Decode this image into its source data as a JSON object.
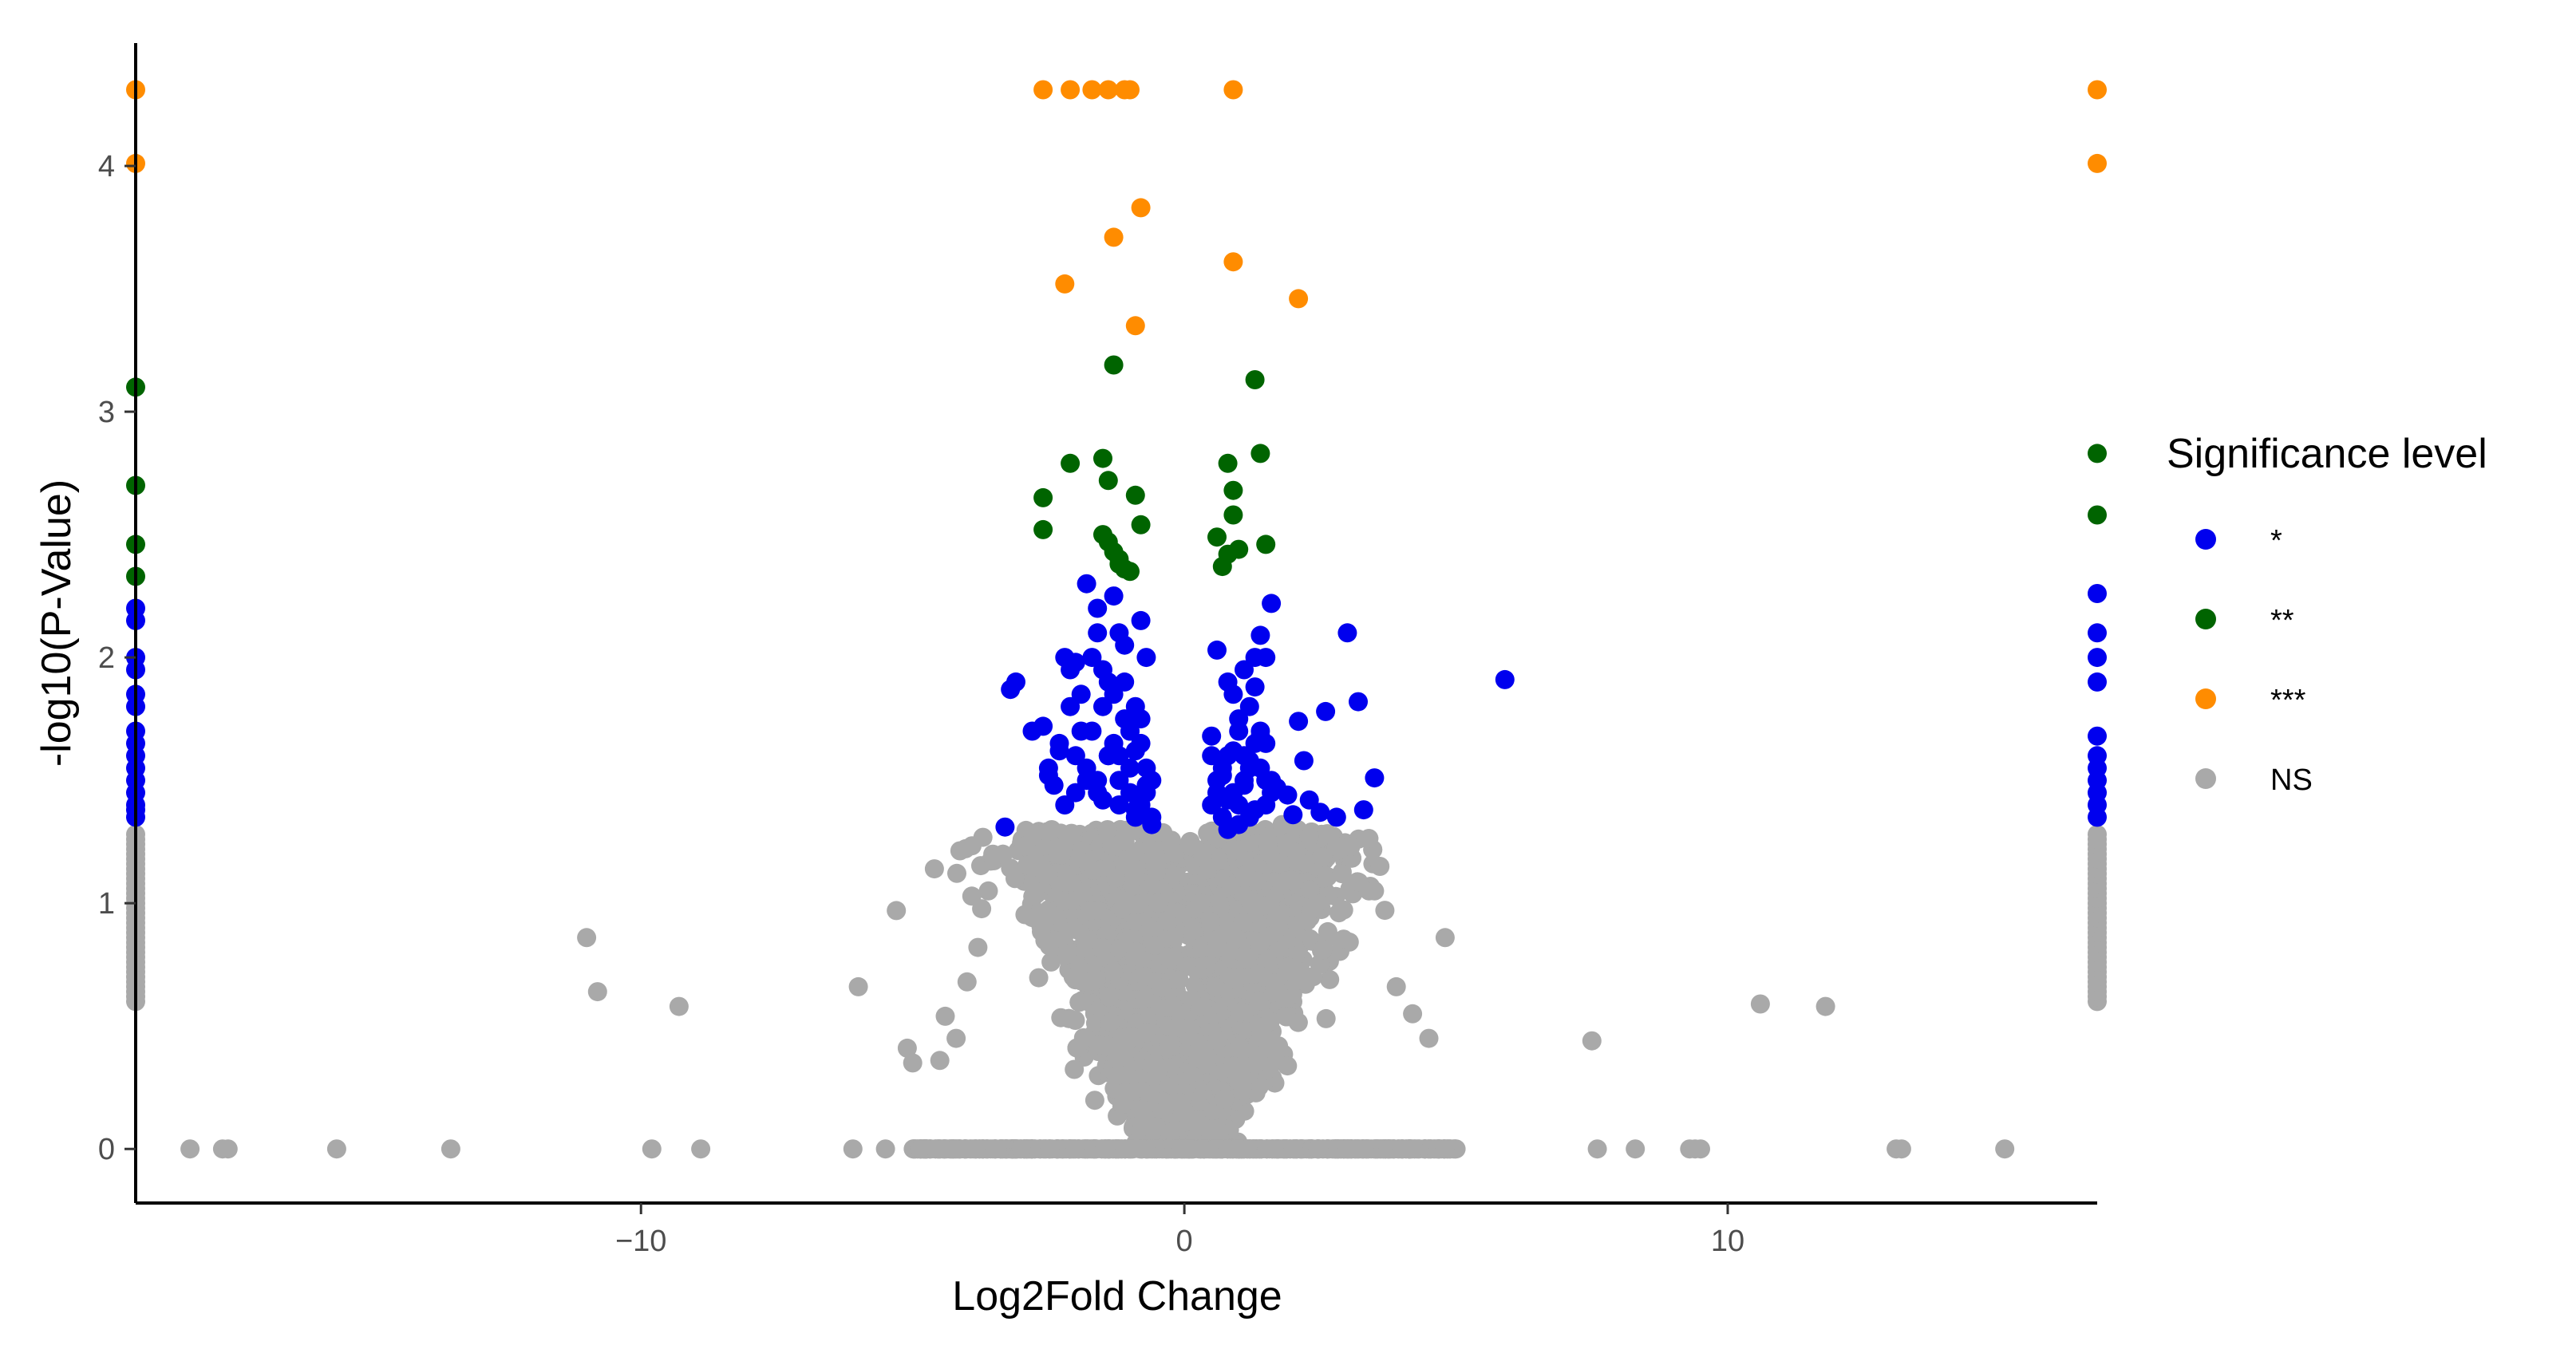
{
  "chart_data": {
    "type": "scatter",
    "title": "",
    "xlabel": "Log2Fold Change",
    "ylabel": "-log10(P-Value)",
    "xlim": [
      -19.3,
      16.8
    ],
    "ylim": [
      -0.22,
      4.5
    ],
    "xticks": [
      -10,
      0,
      10
    ],
    "xtick_labels": [
      "−10",
      "0",
      "10"
    ],
    "yticks": [
      0,
      1,
      2,
      3,
      4
    ],
    "ytick_labels": [
      "0",
      "1",
      "2",
      "3",
      "4"
    ],
    "grid": false,
    "legend": {
      "title": "Significance level",
      "placement": "right",
      "entries": [
        {
          "label": "*",
          "color": "#0000ee"
        },
        {
          "label": "**",
          "color": "#006400"
        },
        {
          "label": "***",
          "color": "#ff8c00"
        },
        {
          "label": "NS",
          "color": "#a9a9a9"
        }
      ]
    },
    "series": [
      {
        "name": "*",
        "color": "#0000ee",
        "x": [
          -19.3,
          -19.3,
          -19.3,
          -19.3,
          -19.3,
          -19.3,
          -19.3,
          -19.3,
          -19.3,
          -19.3,
          -19.3,
          -19.3,
          -19.3,
          -19.3,
          -19.3,
          -3.2,
          -3.1,
          -2.8,
          -2.6,
          -2.5,
          -2.4,
          -2.3,
          -2.2,
          -2.1,
          -2.0,
          -1.9,
          -1.8,
          -1.7,
          -1.6,
          -1.5,
          -1.4,
          -1.3,
          -1.2,
          -1.1,
          -1.0,
          -0.9,
          -0.8,
          -0.7,
          -0.6,
          -2.2,
          -2.0,
          -1.8,
          -1.6,
          -1.4,
          -1.2,
          -1.0,
          -0.8,
          -2.5,
          -1.7,
          -1.3,
          -0.9,
          -0.6,
          -2.1,
          -1.5,
          -1.1,
          -0.7,
          -1.9,
          -1.4,
          -1.0,
          -0.8,
          -1.6,
          -1.2,
          -0.9,
          -1.3,
          -1.0,
          -0.7,
          -1.1,
          -0.8,
          -2.3,
          -1.8,
          -1.5,
          -0.6,
          -3.3,
          -2.0,
          -1.6,
          -1.2,
          -0.9,
          -0.7,
          0.5,
          0.6,
          0.7,
          0.8,
          0.9,
          1.0,
          1.1,
          1.2,
          1.3,
          1.4,
          1.5,
          1.6,
          0.6,
          0.8,
          1.0,
          1.2,
          1.4,
          0.7,
          0.9,
          1.1,
          1.3,
          1.5,
          0.5,
          0.8,
          1.0,
          1.2,
          1.4,
          1.6,
          0.6,
          0.9,
          1.1,
          1.3,
          1.5,
          0.7,
          1.0,
          1.2,
          0.5,
          1.4,
          1.6,
          1.1,
          0.8,
          2.2,
          2.3,
          2.5,
          2.8,
          3.2,
          3.3,
          3.5,
          1.9,
          2.0,
          1.7,
          2.6,
          3.0,
          2.1,
          1.5,
          1.3,
          5.9,
          16.8,
          16.8,
          16.8,
          16.8,
          16.8,
          16.8,
          16.8,
          16.8,
          16.8,
          16.8,
          16.8
        ],
        "y": [
          2.2,
          2.15,
          2.0,
          1.95,
          1.85,
          1.8,
          1.7,
          1.65,
          1.6,
          1.55,
          1.5,
          1.45,
          1.4,
          1.38,
          1.35,
          1.87,
          1.9,
          1.7,
          1.72,
          1.55,
          1.48,
          1.65,
          2.0,
          1.95,
          1.6,
          1.85,
          2.3,
          2.0,
          2.2,
          1.8,
          1.9,
          2.25,
          2.1,
          1.75,
          1.7,
          1.8,
          1.65,
          1.55,
          1.5,
          1.4,
          1.45,
          1.55,
          1.5,
          1.6,
          1.4,
          1.45,
          1.4,
          1.52,
          1.7,
          1.65,
          1.62,
          1.35,
          1.8,
          1.95,
          1.9,
          2.0,
          1.7,
          1.6,
          1.55,
          1.75,
          1.45,
          1.5,
          1.38,
          1.85,
          1.7,
          1.48,
          2.05,
          2.15,
          1.62,
          1.5,
          1.42,
          1.32,
          1.31,
          1.98,
          2.1,
          1.6,
          1.35,
          1.45,
          1.4,
          1.5,
          1.55,
          1.6,
          1.45,
          1.7,
          1.5,
          1.35,
          1.65,
          1.55,
          1.4,
          1.45,
          2.03,
          1.9,
          1.75,
          1.8,
          1.7,
          1.35,
          1.62,
          1.48,
          1.38,
          1.5,
          1.6,
          1.42,
          1.32,
          1.58,
          1.68,
          1.5,
          1.45,
          1.85,
          1.95,
          2.0,
          1.65,
          1.52,
          1.4,
          1.55,
          1.68,
          2.09,
          2.22,
          1.6,
          1.3,
          1.58,
          1.42,
          1.37,
          1.35,
          1.82,
          1.38,
          1.51,
          1.44,
          1.36,
          1.47,
          1.78,
          2.1,
          1.74,
          2.0,
          1.88,
          1.91,
          2.26,
          2.1,
          2.0,
          1.9,
          1.68,
          1.6,
          1.55,
          1.5,
          1.45,
          1.4,
          1.35
        ]
      },
      {
        "name": "**",
        "color": "#006400",
        "x": [
          -19.3,
          -19.3,
          -19.3,
          -19.3,
          -2.6,
          -2.6,
          -2.1,
          -1.5,
          -1.4,
          -1.3,
          -1.5,
          -1.4,
          -1.3,
          -1.2,
          -1.1,
          -0.9,
          -0.8,
          -1.0,
          -1.2,
          0.6,
          0.8,
          0.9,
          0.9,
          1.0,
          1.3,
          1.4,
          1.5,
          0.7,
          0.8,
          16.8,
          16.8
        ],
        "y": [
          3.1,
          2.7,
          2.46,
          2.33,
          2.65,
          2.52,
          2.79,
          2.81,
          2.72,
          3.19,
          2.5,
          2.47,
          2.43,
          2.4,
          2.36,
          2.66,
          2.54,
          2.35,
          2.38,
          2.49,
          2.79,
          2.68,
          2.58,
          2.44,
          3.13,
          2.83,
          2.46,
          2.37,
          2.42,
          2.83,
          2.58
        ]
      },
      {
        "name": "***",
        "color": "#ff8c00",
        "x": [
          -19.3,
          -19.3,
          -2.6,
          -2.1,
          -1.7,
          -1.4,
          -1.1,
          -1.0,
          0.9,
          -2.2,
          -1.3,
          -0.8,
          -0.9,
          0.9,
          2.1,
          16.8,
          16.8
        ],
        "y": [
          4.31,
          4.01,
          4.31,
          4.31,
          4.31,
          4.31,
          4.31,
          4.31,
          4.31,
          3.52,
          3.71,
          3.83,
          3.35,
          3.61,
          3.46,
          4.31,
          4.01
        ]
      },
      {
        "name": "NS",
        "color": "#a9a9a9",
        "note_outliers": true,
        "x": [
          -11.0,
          -10.8,
          -9.3,
          -6.0,
          -5.3,
          -5.1,
          -4.5,
          -4.4,
          -4.6,
          -4.0,
          -5.0,
          -4.2,
          -3.8,
          -17.7,
          -17.6,
          -18.3,
          -15.6,
          -13.5,
          -9.8,
          -8.9,
          -6.1,
          -5.5,
          -4.5,
          -3.0,
          -2.0,
          -1.0,
          7.5,
          7.6,
          8.3,
          9.3,
          9.4,
          9.5,
          13.1,
          13.2,
          15.1,
          10.6,
          11.8,
          3.5,
          3.6,
          4.5,
          4.2,
          4.8,
          3.9,
          2.9,
          2.3,
          2.8,
          1.8,
          5.0,
          4.8,
          4.0,
          3.0,
          2.0,
          1.0
        ],
        "y": [
          0.86,
          0.64,
          0.58,
          0.66,
          0.97,
          0.41,
          0.36,
          0.54,
          1.14,
          0.68,
          0.35,
          0.45,
          0.82,
          0.0,
          0.0,
          0.0,
          0.0,
          0.0,
          0.0,
          0.0,
          0.0,
          0.0,
          0.0,
          0.0,
          0.0,
          0.0,
          0.44,
          0.0,
          0.0,
          0.0,
          0.0,
          0.0,
          0.0,
          0.0,
          0.0,
          0.59,
          0.58,
          1.05,
          1.15,
          0.45,
          0.55,
          0.86,
          0.66,
          1.12,
          1.27,
          1.23,
          1.32,
          0.0,
          0.0,
          0.0,
          0.0,
          0.0,
          0.0
        ]
      }
    ]
  }
}
